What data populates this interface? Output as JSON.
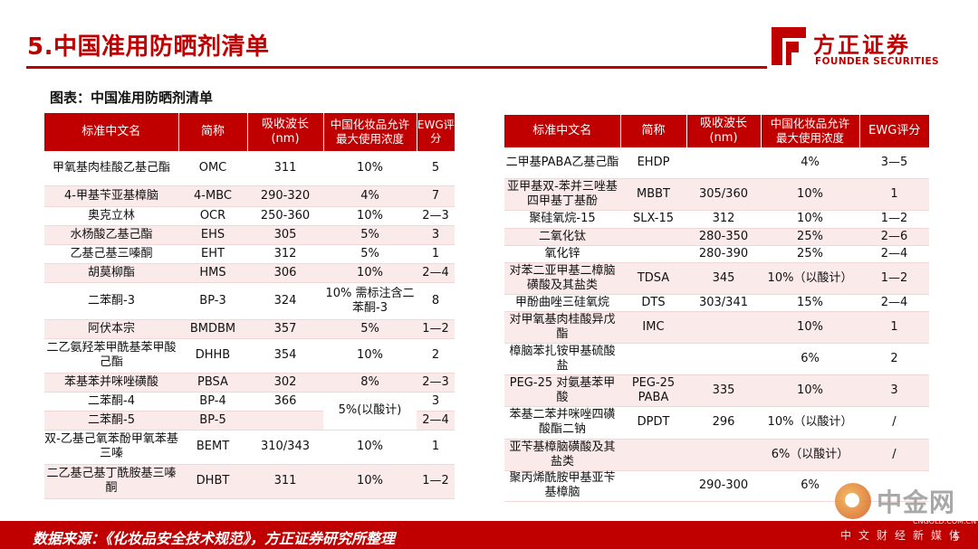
{
  "header": {
    "title": "5.中国准用防晒剂清单",
    "logo_cn": "方正证券",
    "logo_en": "FOUNDER SECURITIES"
  },
  "caption": "图表：中国准用防晒剂清单",
  "table_headers": {
    "name": "标准中文名",
    "abbr": "简称",
    "wavelength": "吸收波长\n(nm)",
    "max_conc": "中国化妆品允许\n最大使用浓度",
    "ewg": "EWG评分"
  },
  "left_rows": [
    {
      "name": "甲氧基肉桂酸乙基己酯",
      "abbr": "OMC",
      "wl": "311",
      "conc": "10%",
      "ewg": "5"
    },
    {
      "name": "4-甲基苄亚基樟脑",
      "abbr": "4-MBC",
      "wl": "290-320",
      "conc": "4%",
      "ewg": "7"
    },
    {
      "name": "奥克立林",
      "abbr": "OCR",
      "wl": "250-360",
      "conc": "10%",
      "ewg": "2—3"
    },
    {
      "name": "水杨酸乙基己酯",
      "abbr": "EHS",
      "wl": "305",
      "conc": "5%",
      "ewg": "3"
    },
    {
      "name": "乙基己基三嗪酮",
      "abbr": "EHT",
      "wl": "312",
      "conc": "5%",
      "ewg": "1"
    },
    {
      "name": "胡莫柳酯",
      "abbr": "HMS",
      "wl": "306",
      "conc": "10%",
      "ewg": "2—4"
    },
    {
      "name": "二苯酮-3",
      "abbr": "BP-3",
      "wl": "324",
      "conc": "10%  需标注含二苯酮-3",
      "ewg": "8"
    },
    {
      "name": "阿伏本宗",
      "abbr": "BMDBM",
      "wl": "357",
      "conc": "5%",
      "ewg": "1—2"
    },
    {
      "name": "二乙氨羟苯甲酰基苯甲酸己酯",
      "abbr": "DHHB",
      "wl": "354",
      "conc": "10%",
      "ewg": "2"
    },
    {
      "name": "苯基苯并咪唑磺酸",
      "abbr": "PBSA",
      "wl": "302",
      "conc": "8%",
      "ewg": "2—3"
    },
    {
      "name": "二苯酮-4",
      "abbr": "BP-4",
      "wl": "366",
      "conc": "5%(以酸计)",
      "ewg": "3"
    },
    {
      "name": "二苯酮-5",
      "abbr": "BP-5",
      "wl": "",
      "conc": "",
      "ewg": "2—4"
    },
    {
      "name": "双-乙基己氧苯酚甲氧苯基三嗪",
      "abbr": "BEMT",
      "wl": "310/343",
      "conc": "10%",
      "ewg": "1"
    },
    {
      "name": "二乙基己基丁酰胺基三嗪酮",
      "abbr": "DHBT",
      "wl": "311",
      "conc": "10%",
      "ewg": "1—2"
    }
  ],
  "right_rows": [
    {
      "name": "二甲基PABA乙基己酯",
      "abbr": "EHDP",
      "wl": "",
      "conc": "4%",
      "ewg": "3—5"
    },
    {
      "name": "亚甲基双-苯并三唑基四甲基丁基酚",
      "abbr": "MBBT",
      "wl": "305/360",
      "conc": "10%",
      "ewg": "1"
    },
    {
      "name": "聚硅氧烷-15",
      "abbr": "SLX-15",
      "wl": "312",
      "conc": "10%",
      "ewg": "1—2"
    },
    {
      "name": "二氧化钛",
      "abbr": "",
      "wl": "280-350",
      "conc": "25%",
      "ewg": "2—6"
    },
    {
      "name": "氧化锌",
      "abbr": "",
      "wl": "280-390",
      "conc": "25%",
      "ewg": "2—4"
    },
    {
      "name": "对苯二亚甲基二樟脑磺酸及其盐类",
      "abbr": "TDSA",
      "wl": "345",
      "conc": "10%（以酸计）",
      "ewg": "1—2"
    },
    {
      "name": "甲酚曲唑三硅氧烷",
      "abbr": "DTS",
      "wl": "303/341",
      "conc": "15%",
      "ewg": "2—4"
    },
    {
      "name": "对甲氧基肉桂酸异戊酯",
      "abbr": "IMC",
      "wl": "",
      "conc": "10%",
      "ewg": "1"
    },
    {
      "name": "樟脑苯扎铵甲基硫酸盐",
      "abbr": "",
      "wl": "",
      "conc": "6%",
      "ewg": "2"
    },
    {
      "name": "PEG-25 对氨基苯甲酸",
      "abbr": "PEG-25 PABA",
      "wl": "335",
      "conc": "10%",
      "ewg": "3"
    },
    {
      "name": "苯基二苯并咪唑四磺酸酯二钠",
      "abbr": "DPDT",
      "wl": "296",
      "conc": "10%（以酸计）",
      "ewg": "/"
    },
    {
      "name": "亚苄基樟脑磺酸及其盐类",
      "abbr": "",
      "wl": "",
      "conc": "6%（以酸计）",
      "ewg": "/"
    },
    {
      "name": "聚丙烯酰胺甲基亚苄基樟脑",
      "abbr": "",
      "wl": "290-300",
      "conc": "6%",
      "ewg": ""
    }
  ],
  "footer": {
    "source": "数据来源：《化妆品安全技术规范》，方正证券研究所整理",
    "watermark_cn": "中金网",
    "watermark_url": "CNGOLD.COM.CN",
    "watermark_sub": "中文财经新媒体",
    "page_number": "5"
  },
  "colors": {
    "brand_red": "#c00000",
    "row_alt": "#fbeaea"
  }
}
